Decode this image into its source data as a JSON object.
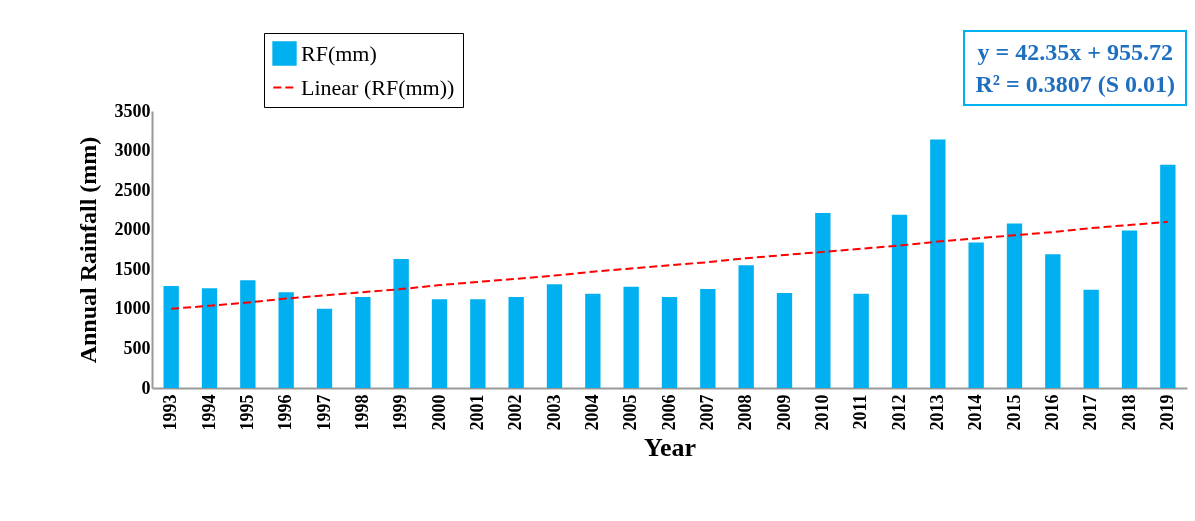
{
  "chart_data": {
    "type": "bar",
    "categories": [
      "1993",
      "1994",
      "1995",
      "1996",
      "1997",
      "1998",
      "1999",
      "2000",
      "2001",
      "2002",
      "2003",
      "2004",
      "2005",
      "2006",
      "2007",
      "2008",
      "2009",
      "2010",
      "2011",
      "2012",
      "2013",
      "2014",
      "2015",
      "2016",
      "2017",
      "2018",
      "2019"
    ],
    "series": [
      {
        "name": "RF(mm)",
        "color": "#00b0f0",
        "values": [
          1290,
          1260,
          1360,
          1210,
          1000,
          1150,
          1630,
          1120,
          1120,
          1150,
          1310,
          1190,
          1280,
          1150,
          1250,
          1550,
          1200,
          2210,
          1190,
          2190,
          3140,
          1840,
          2080,
          1690,
          1240,
          1990,
          2820
        ]
      },
      {
        "name": "Linear (RF(mm))",
        "type": "line",
        "color": "#ff0000",
        "line_style": "dashed",
        "values": [
          1000,
          1040,
          1080,
          1130,
          1170,
          1210,
          1250,
          1300,
          1340,
          1380,
          1420,
          1470,
          1510,
          1550,
          1590,
          1640,
          1680,
          1720,
          1760,
          1800,
          1850,
          1890,
          1930,
          1970,
          2020,
          2060,
          2100
        ]
      }
    ],
    "xlabel": "Year",
    "ylabel": "Annual Rainfall (mm)",
    "ylim": [
      0,
      3500
    ],
    "yticks": [
      0,
      500,
      1000,
      1500,
      2000,
      2500,
      3000,
      3500
    ],
    "legend": "top left",
    "annotations": [
      "y = 42.35x + 955.72",
      "R² = 0.3807  (S 0.01)"
    ]
  }
}
